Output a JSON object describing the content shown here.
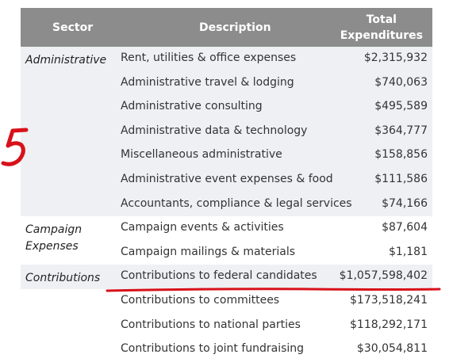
{
  "table": {
    "headers": {
      "sector": "Sector",
      "description": "Description",
      "total_line1": "Total",
      "total_line2": "Expenditures"
    },
    "groups": [
      {
        "sector_line1": "Administrative",
        "sector_line2": "",
        "rows": [
          {
            "description": "Rent, utilities & office expenses",
            "amount": "$2,315,932"
          },
          {
            "description": "Administrative travel & lodging",
            "amount": "$740,063"
          },
          {
            "description": "Administrative consulting",
            "amount": "$495,589"
          },
          {
            "description": "Administrative data & technology",
            "amount": "$364,777"
          },
          {
            "description": "Miscellaneous administrative",
            "amount": "$158,856"
          },
          {
            "description": "Administrative event expenses & food",
            "amount": "$111,586"
          },
          {
            "description": "Accountants, compliance & legal services",
            "amount": "$74,166"
          }
        ]
      },
      {
        "sector_line1": "Campaign",
        "sector_line2": "Expenses",
        "rows": [
          {
            "description": "Campaign events & activities",
            "amount": "$87,604"
          },
          {
            "description": "Campaign mailings & materials",
            "amount": "$1,181"
          }
        ]
      },
      {
        "sector_line1": "Contributions",
        "sector_line2": "",
        "rows": [
          {
            "description": "Contributions to federal candidates",
            "amount": "$1,057,598,402"
          },
          {
            "description": "Contributions to committees",
            "amount": "$173,518,241"
          },
          {
            "description": "Contributions to national parties",
            "amount": "$118,292,171"
          },
          {
            "description": "Contributions to joint fundraising",
            "amount": "$30,054,811"
          }
        ]
      }
    ]
  },
  "annotation": {
    "handwritten_mark": "5",
    "ink_color": "#d8111a"
  },
  "colors": {
    "header_bg": "#8c8c8c",
    "shaded_row_bg": "#eef0f3"
  }
}
